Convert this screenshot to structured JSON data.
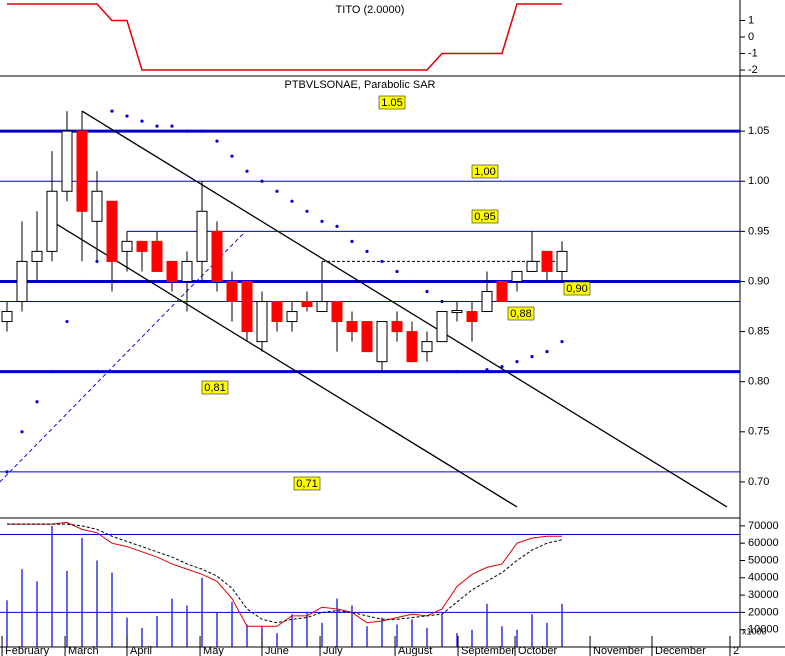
{
  "chart_data": [
    {
      "type": "line",
      "title": "TITO (2.0000)",
      "color": "#e00000",
      "values": [
        2,
        2,
        2,
        2,
        2,
        2,
        2,
        1,
        1,
        -2,
        -2,
        -2,
        -2,
        -2,
        -2,
        -2,
        -2,
        -2,
        -2,
        -2,
        -2,
        -2,
        -2,
        -2,
        -2,
        -2,
        -2,
        -2,
        -2,
        -1,
        -1,
        -1,
        -1,
        -1,
        2,
        2,
        2,
        2
      ],
      "ylim": [
        -2.3,
        2.24
      ],
      "yticks": [
        1,
        0,
        -1,
        -2
      ]
    },
    {
      "type": "candlestick",
      "title": "PTBVLSONAE, Parabolic SAR",
      "open": [
        0.86,
        0.88,
        0.92,
        0.93,
        0.99,
        1.05,
        0.96,
        0.98,
        0.93,
        0.94,
        0.94,
        0.92,
        0.9,
        0.92,
        0.95,
        0.9,
        0.9,
        0.84,
        0.88,
        0.86,
        0.88,
        0.87,
        0.88,
        0.86,
        0.86,
        0.82,
        0.86,
        0.85,
        0.83,
        0.84,
        0.869,
        0.87,
        0.87,
        0.9,
        0.9,
        0.91,
        0.93,
        0.91
      ],
      "high": [
        0.88,
        0.96,
        0.97,
        1.03,
        1.07,
        1.07,
        1.01,
        0.98,
        0.95,
        0.94,
        0.95,
        0.92,
        0.93,
        1.0,
        0.96,
        0.91,
        0.9,
        0.89,
        0.88,
        0.88,
        0.89,
        0.92,
        0.88,
        0.87,
        0.86,
        0.86,
        0.87,
        0.86,
        0.85,
        0.87,
        0.88,
        0.88,
        0.91,
        0.9,
        0.91,
        0.95,
        0.93,
        0.94
      ],
      "low": [
        0.85,
        0.87,
        0.9,
        0.92,
        0.98,
        0.92,
        0.92,
        0.89,
        0.91,
        0.91,
        0.91,
        0.89,
        0.87,
        0.9,
        0.89,
        0.86,
        0.84,
        0.83,
        0.85,
        0.85,
        0.87,
        0.87,
        0.83,
        0.84,
        0.83,
        0.81,
        0.84,
        0.82,
        0.82,
        0.84,
        0.86,
        0.84,
        0.87,
        0.88,
        0.89,
        0.91,
        0.9,
        0.9
      ],
      "close": [
        0.87,
        0.92,
        0.93,
        0.99,
        1.05,
        0.97,
        0.99,
        0.92,
        0.94,
        0.93,
        0.91,
        0.9,
        0.92,
        0.97,
        0.9,
        0.88,
        0.85,
        0.88,
        0.86,
        0.87,
        0.875,
        0.88,
        0.86,
        0.85,
        0.83,
        0.86,
        0.85,
        0.82,
        0.84,
        0.87,
        0.871,
        0.86,
        0.89,
        0.88,
        0.91,
        0.92,
        0.91,
        0.93
      ],
      "up_color": "#ffffff",
      "down_color": "#ff0000",
      "sar": {
        "color": "#0000dd",
        "values": [
          0.71,
          0.75,
          0.78,
          0.81,
          0.86,
          0.9,
          0.92,
          1.07,
          1.065,
          1.06,
          1.055,
          1.055,
          1.05,
          1.05,
          1.04,
          1.025,
          1.01,
          1.0,
          0.99,
          0.98,
          0.97,
          0.96,
          0.955,
          0.94,
          0.93,
          0.92,
          0.91,
          0.9,
          0.89,
          0.88,
          0.81,
          0.81,
          0.812,
          0.815,
          0.82,
          0.825,
          0.83,
          0.84
        ]
      },
      "levels": [
        {
          "value": 1.05,
          "label": "1.05",
          "thick": true
        },
        {
          "value": 1.0,
          "label": "1,00"
        },
        {
          "value": 0.95,
          "label": "0,95",
          "start": 8
        },
        {
          "value": 0.9,
          "label": "0,90",
          "thick": true
        },
        {
          "value": 0.88,
          "label": "0,88"
        },
        {
          "value": 0.81,
          "label": "0,81",
          "thick": true
        },
        {
          "value": 0.71,
          "label": "0,71"
        }
      ],
      "dashed_level": {
        "value": 0.92,
        "start": 21,
        "end": 37
      },
      "trend_lines": [
        {
          "x": [
            5,
            48
          ],
          "y": [
            1.07,
            0.675
          ],
          "color": "#000000"
        },
        {
          "x": [
            3,
            34
          ],
          "y": [
            0.96,
            0.675
          ],
          "color": "#000000"
        },
        {
          "x": [
            -0.47,
            15.9
          ],
          "y": [
            0.7,
            0.95
          ],
          "color": "#0000dd",
          "dashed": true
        }
      ],
      "ylim": [
        0.664,
        1.103
      ],
      "yticks": [
        {
          "value": 0.7,
          "label": "0.70"
        },
        {
          "value": 0.75,
          "label": "0.75"
        },
        {
          "value": 0.8,
          "label": "0.80"
        },
        {
          "value": 0.85,
          "label": "0.85"
        },
        {
          "value": 0.9,
          "label": "0.90"
        },
        {
          "value": 0.95,
          "label": "0.95"
        },
        {
          "value": 1.0,
          "label": "1.00"
        },
        {
          "value": 1.05,
          "label": "1.05"
        }
      ]
    },
    {
      "type": "volume",
      "color": "#0000dd",
      "values": [
        27000,
        45000,
        38000,
        70000,
        44000,
        63000,
        50000,
        43000,
        17000,
        11000,
        18000,
        28000,
        24000,
        40000,
        20000,
        26000,
        13000,
        12000,
        8000,
        19000,
        20000,
        14000,
        28000,
        24000,
        12000,
        17000,
        13000,
        16000,
        11000,
        19000,
        8000,
        10000,
        25000,
        12000,
        10000,
        19000,
        14000,
        25000
      ],
      "series": [
        {
          "color": "#e00000",
          "values": [
            71000,
            71000,
            71000,
            71000,
            72000,
            68000,
            66000,
            60000,
            58000,
            55000,
            52000,
            48000,
            45000,
            42000,
            38000,
            28000,
            12000,
            12000,
            12000,
            18000,
            18000,
            23000,
            22000,
            20000,
            14000,
            15000,
            17000,
            19000,
            18000,
            22000,
            35000,
            42000,
            46000,
            48000,
            60000,
            63000,
            64000,
            64000
          ]
        },
        {
          "color": "#000000",
          "dashed": true,
          "values": [
            71000,
            71000,
            71000,
            71000,
            71000,
            70000,
            68000,
            64000,
            61000,
            58000,
            55000,
            52000,
            48000,
            45000,
            41000,
            34000,
            22000,
            16000,
            14000,
            16000,
            17000,
            20000,
            21000,
            20000,
            18000,
            16000,
            16000,
            17000,
            18000,
            19000,
            26000,
            33000,
            38000,
            43000,
            50000,
            56000,
            60000,
            62000
          ]
        }
      ],
      "levels": [
        65000,
        20000
      ],
      "ylim": [
        0,
        73400
      ],
      "yticks": [
        10000,
        20000,
        30000,
        40000,
        50000,
        60000,
        70000
      ],
      "unit_label": "x1000",
      "months": [
        "February",
        "March",
        "April",
        "May",
        "June",
        "July",
        "August",
        "September",
        "October",
        "November",
        "December",
        "2"
      ],
      "month_starts": [
        -0.33,
        3.87,
        8,
        12.87,
        17,
        20.87,
        25.87,
        30.07,
        33.87,
        38.87,
        43,
        48.2
      ]
    }
  ]
}
